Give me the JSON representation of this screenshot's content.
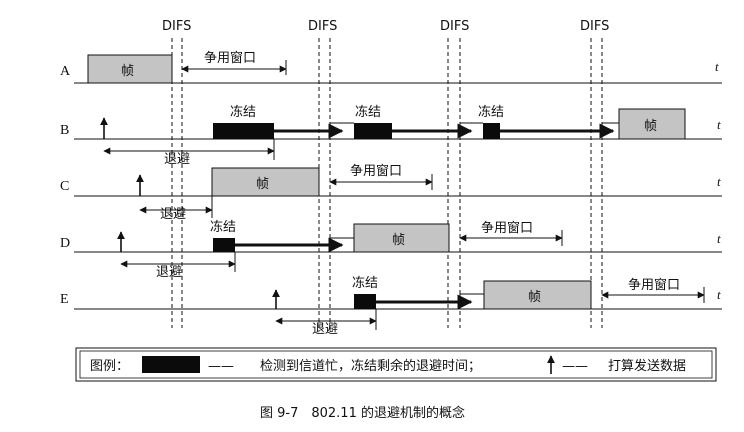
{
  "difs_markers": [
    {
      "label": "DIFS"
    },
    {
      "label": "DIFS"
    },
    {
      "label": "DIFS"
    },
    {
      "label": "DIFS"
    }
  ],
  "stations": [
    {
      "id": "A",
      "time_label": "t"
    },
    {
      "id": "B",
      "time_label": "t"
    },
    {
      "id": "C",
      "time_label": "t"
    },
    {
      "id": "D",
      "time_label": "t"
    },
    {
      "id": "E",
      "time_label": "t"
    }
  ],
  "labels": {
    "frame": "帧",
    "contention_window": "争用窗口",
    "freeze": "冻结",
    "backoff": "退避"
  },
  "legend": {
    "prefix": "图例：",
    "dash": "——",
    "freeze_desc": "检测到信道忙，冻结剩余的退避时间；",
    "send_desc": "打算发送数据"
  },
  "caption": "图 9-7　802.11 的退避机制的概念",
  "colors": {
    "frame_fill": "#c4c4c4",
    "freeze_fill": "#0b0b0b",
    "line": "#111111"
  }
}
